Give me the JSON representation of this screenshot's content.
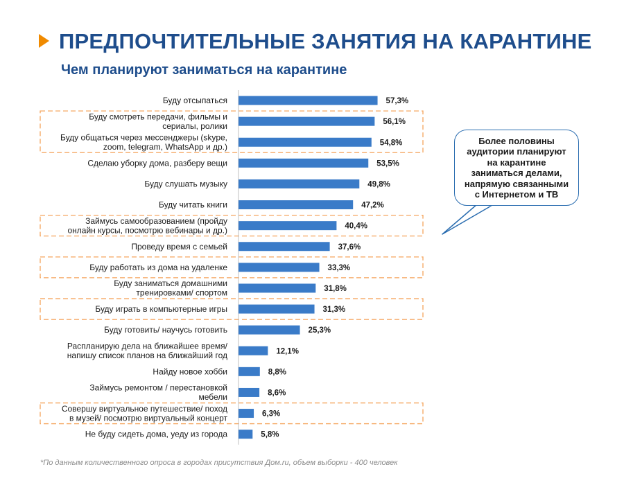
{
  "header": {
    "title": "ПРЕДПОЧТИТЕЛЬНЫЕ ЗАНЯТИЯ НА КАРАНТИНЕ",
    "subtitle": "Чем планируют заниматься на карантине"
  },
  "chart_data": {
    "type": "bar",
    "orientation": "horizontal",
    "categories": [
      [
        "Буду отсыпаться"
      ],
      [
        "Буду смотреть передачи, фильмы и",
        "сериалы, ролики"
      ],
      [
        "Буду общаться через мессенджеры (skype,",
        "zoom, telegram, WhatsApp и др.)"
      ],
      [
        "Сделаю уборку дома, разберу вещи"
      ],
      [
        "Буду слушать музыку"
      ],
      [
        "Буду читать книги"
      ],
      [
        "Займусь самообразованием (пройду",
        "онлайн курсы, посмотрю вебинары и др.)"
      ],
      [
        "Проведу время с семьей"
      ],
      [
        "Буду работать из дома на удаленке"
      ],
      [
        "Буду заниматься домашними",
        "тренировками/ спортом"
      ],
      [
        "Буду играть в компьютерные игры"
      ],
      [
        "Буду готовить/ научусь готовить"
      ],
      [
        "Распланирую дела на ближайшее время/",
        "напишу список планов на ближайший год"
      ],
      [
        "Найду новое хобби"
      ],
      [
        "Займусь ремонтом / перестановкой",
        "мебели"
      ],
      [
        "Совершу виртуальное путешествие/ поход",
        "в музей/ посмотрю виртуальный концерт"
      ],
      [
        "Не буду сидеть дома, уеду из города"
      ]
    ],
    "values": [
      57.3,
      56.1,
      54.8,
      53.5,
      49.8,
      47.2,
      40.4,
      37.6,
      33.3,
      31.8,
      31.3,
      25.3,
      12.1,
      8.8,
      8.6,
      6.3,
      5.8
    ],
    "value_labels": [
      "57,3%",
      "56,1%",
      "54,8%",
      "53,5%",
      "49,8%",
      "47,2%",
      "40,4%",
      "37,6%",
      "33,3%",
      "31,8%",
      "31,3%",
      "25,3%",
      "12,1%",
      "8,8%",
      "8,6%",
      "6,3%",
      "5,8%"
    ],
    "highlighted_groups": [
      [
        1,
        2
      ],
      [
        6,
        6
      ],
      [
        8,
        8
      ],
      [
        10,
        10
      ],
      [
        15,
        15
      ]
    ],
    "xlim": [
      0,
      100
    ],
    "grid": false,
    "bar_color": "#3a7bc8",
    "highlight_color": "#f5a45c"
  },
  "callout": {
    "text": "Более половины аудитории планируют на карантине заниматься делами, напрямую связанными с Интернетом и ТВ"
  },
  "footnote": "*По данным количественного опроса в городах присутствия Дом.ru, объем выборки - 400 человек",
  "colors": {
    "title": "#1e4d8c",
    "accent": "#f08a00",
    "callout_border": "#2a6db0"
  }
}
